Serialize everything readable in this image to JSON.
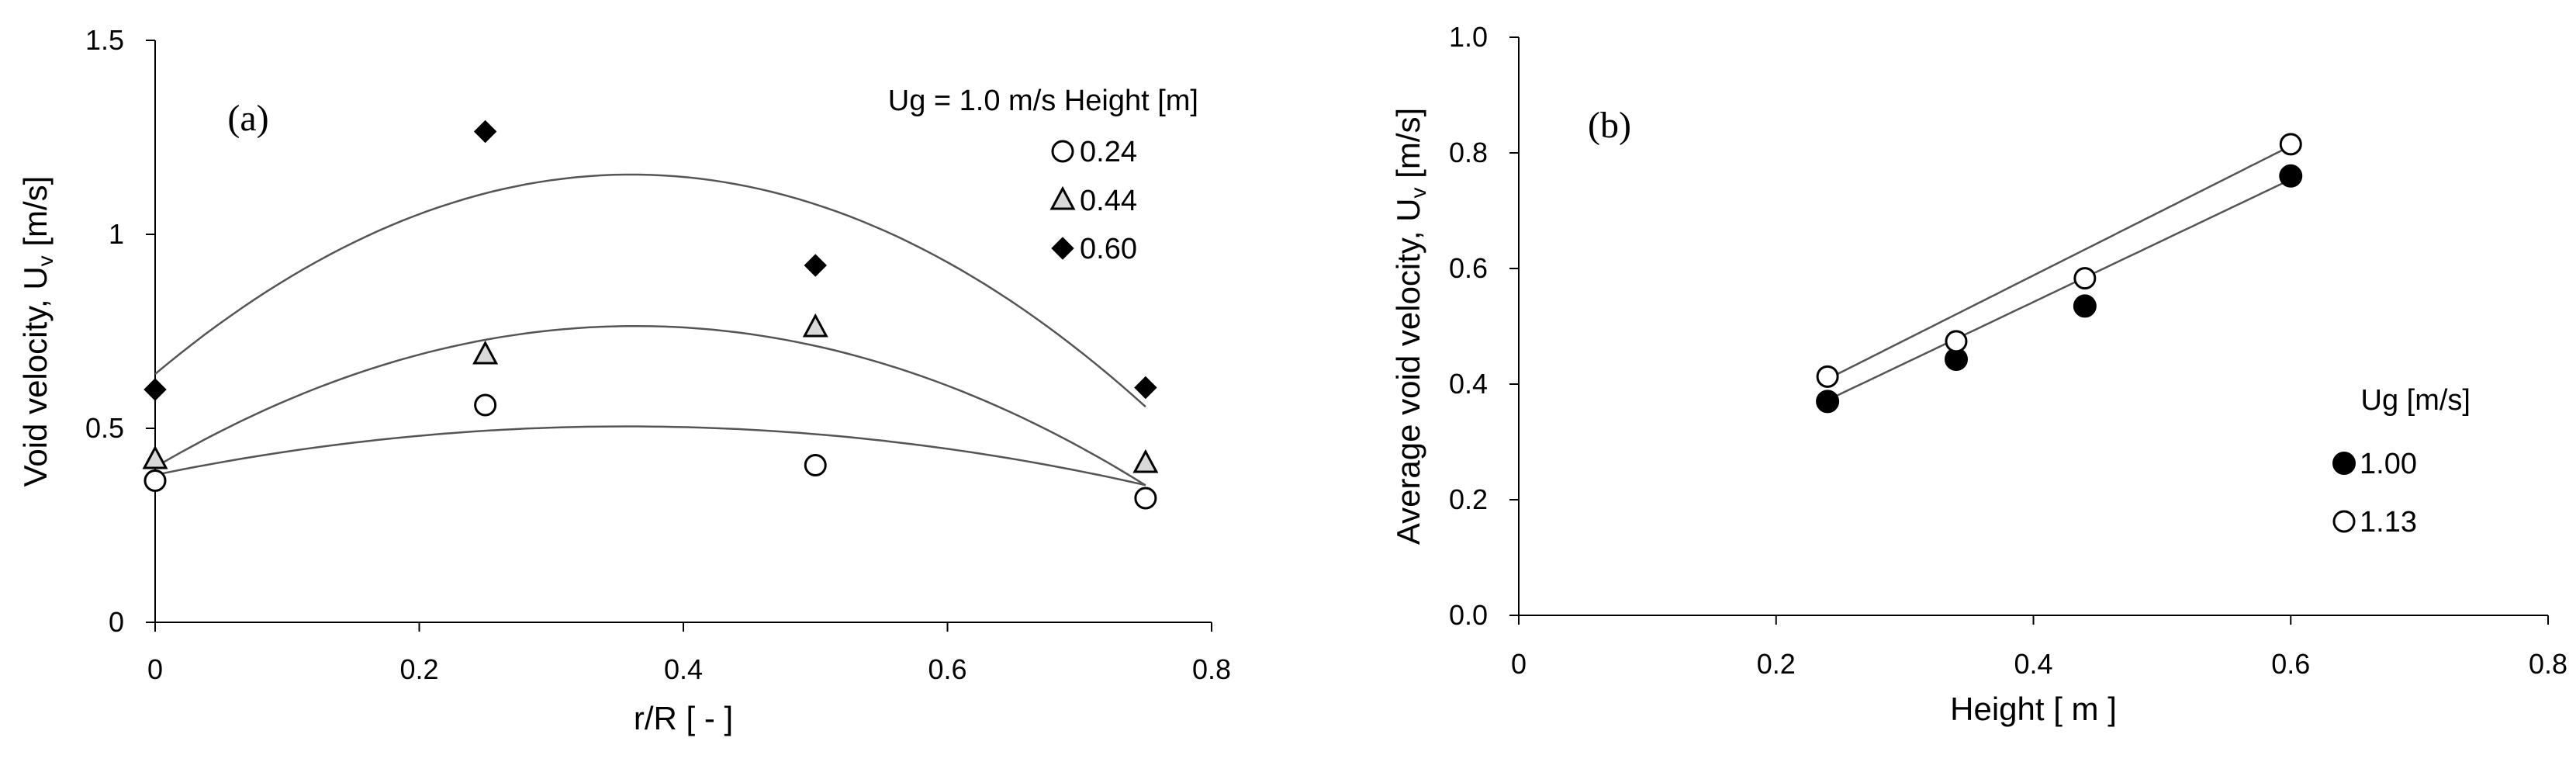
{
  "chart_data": [
    {
      "id": "a",
      "type": "scatter",
      "panel_label": "(a)",
      "xlabel": "r/R [ - ]",
      "ylabel": "Void velocity, U",
      "ylabel_sub": "v",
      "ylabel_unit": " [m/s]",
      "xlim": [
        0,
        0.8
      ],
      "ylim": [
        0,
        1.5
      ],
      "xticks": [
        0,
        0.2,
        0.4,
        0.6,
        0.8
      ],
      "xtick_labels": [
        "0",
        "0.2",
        "0.4",
        "0.6",
        "0.8"
      ],
      "yticks": [
        0,
        0.5,
        1,
        1.5
      ],
      "ytick_labels": [
        "0",
        "0.5",
        "1",
        "1.5"
      ],
      "legend_title": "Ug = 1.0 m/s Height [m]",
      "legend_placement": "top-right",
      "series": [
        {
          "name": "0.24",
          "marker": "circle-open",
          "x": [
            0,
            0.25,
            0.5,
            0.75
          ],
          "y": [
            0.365,
            0.56,
            0.405,
            0.32
          ],
          "fit": [
            0.38,
            0.7,
            -0.98
          ]
        },
        {
          "name": "0.44",
          "marker": "triangle-open",
          "x": [
            0,
            0.25,
            0.5,
            0.75
          ],
          "y": [
            0.42,
            0.69,
            0.76,
            0.41
          ],
          "fit": [
            0.4,
            2.0,
            -2.75
          ]
        },
        {
          "name": "0.60",
          "marker": "diamond-filled",
          "x": [
            0,
            0.25,
            0.5,
            0.75
          ],
          "y": [
            0.6,
            1.265,
            0.92,
            0.605
          ],
          "fit": [
            0.64,
            2.85,
            -3.95
          ]
        }
      ]
    },
    {
      "id": "b",
      "type": "scatter",
      "panel_label": "(b)",
      "xlabel": "Height [ m ]",
      "ylabel": "Average void velocity, U",
      "ylabel_sub": "v",
      "ylabel_unit": " [m/s]",
      "xlim": [
        0,
        0.8
      ],
      "ylim": [
        0,
        1.0
      ],
      "xticks": [
        0,
        0.2,
        0.4,
        0.6,
        0.8
      ],
      "xtick_labels": [
        "0",
        "0.2",
        "0.4",
        "0.6",
        "0.8"
      ],
      "yticks": [
        0,
        0.2,
        0.4,
        0.6,
        0.8,
        1.0
      ],
      "ytick_labels": [
        "0.0",
        "0.2",
        "0.4",
        "0.6",
        "0.8",
        "1.0"
      ],
      "legend_title": "Ug [m/s]",
      "legend_placement": "bottom-right",
      "series": [
        {
          "name": "1.00",
          "marker": "circle-filled",
          "x": [
            0.24,
            0.34,
            0.44,
            0.6
          ],
          "y": [
            0.37,
            0.443,
            0.535,
            0.76
          ],
          "fit": [
            0.118,
            1.06
          ]
        },
        {
          "name": "1.13",
          "marker": "circle-open",
          "x": [
            0.24,
            0.34,
            0.44,
            0.6
          ],
          "y": [
            0.413,
            0.474,
            0.583,
            0.815
          ],
          "fit": [
            0.14,
            1.12
          ]
        }
      ]
    }
  ]
}
